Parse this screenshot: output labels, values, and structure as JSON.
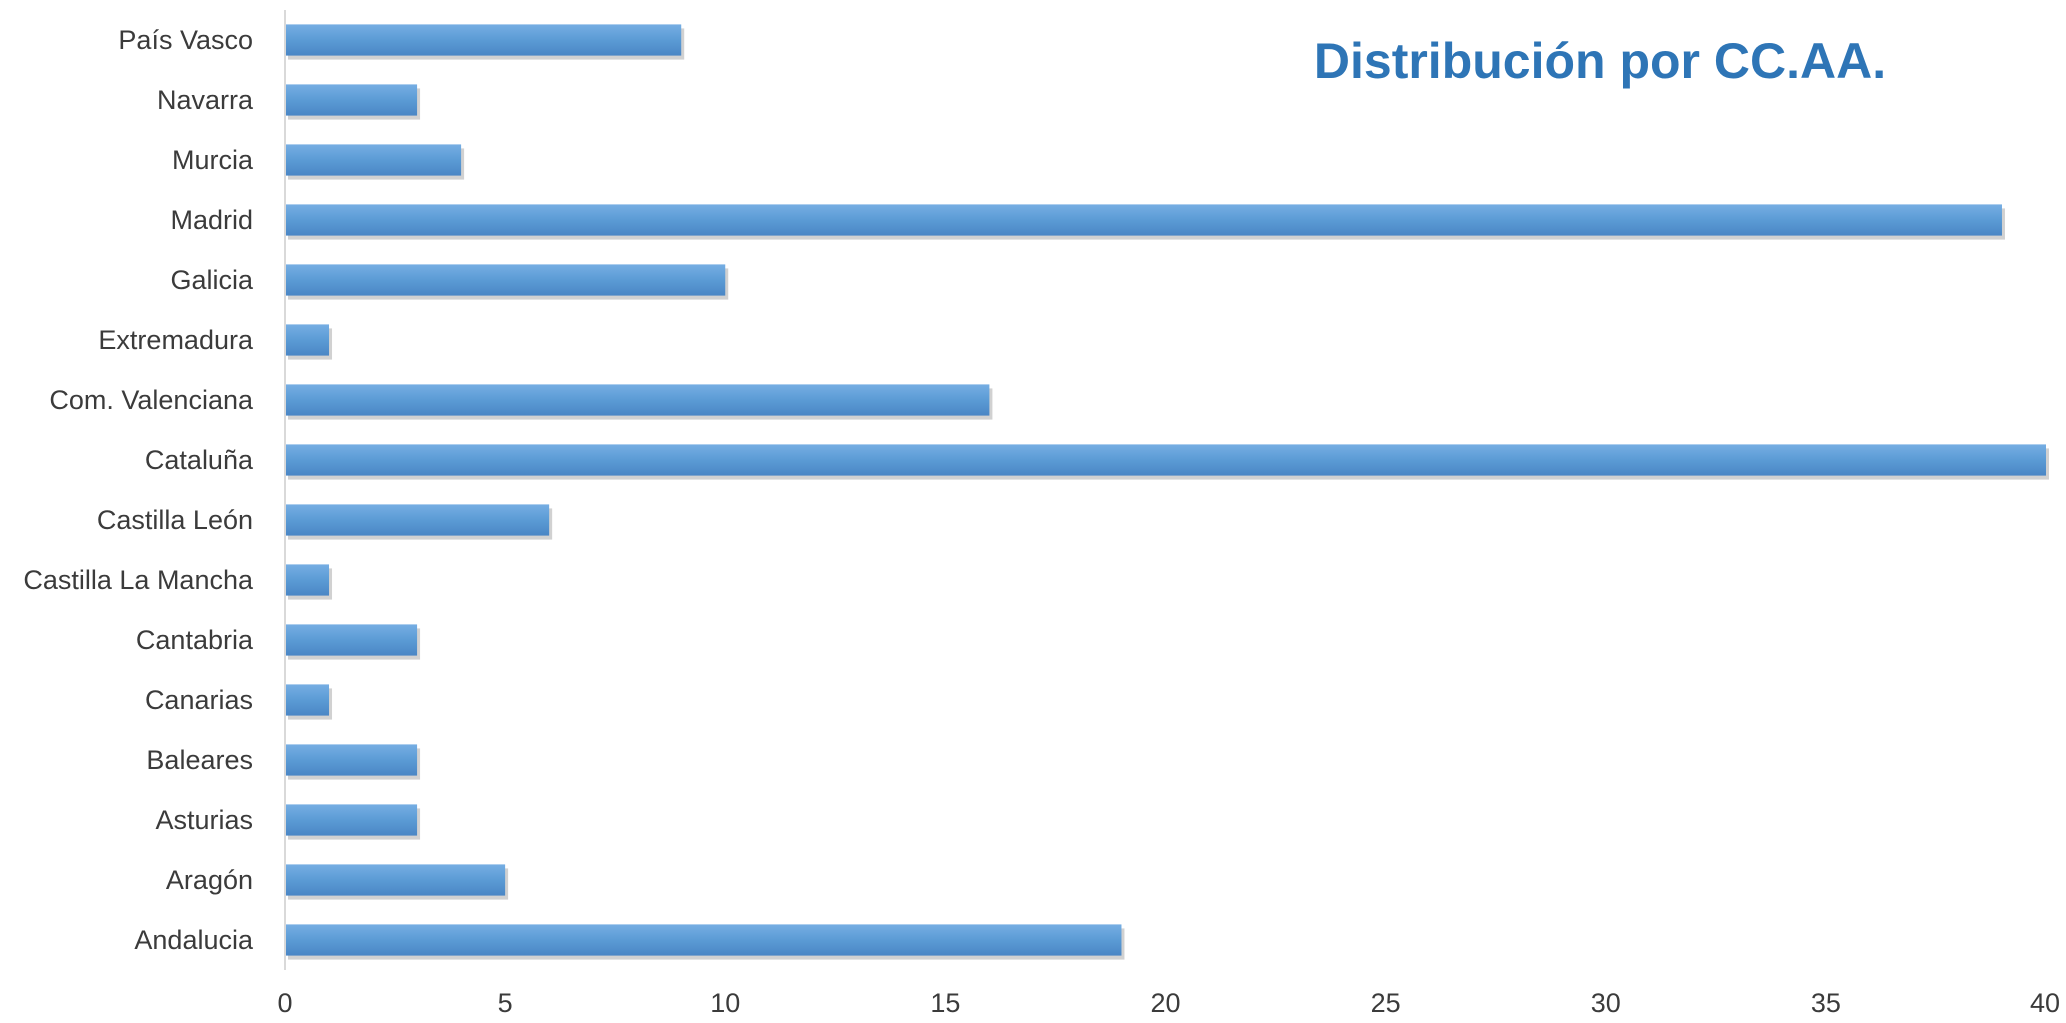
{
  "chart_data": {
    "type": "bar",
    "orientation": "horizontal",
    "title": "Distribución por CC.AA.",
    "xlabel": "",
    "ylabel": "",
    "categories": [
      "Andalucia",
      "Aragón",
      "Asturias",
      "Baleares",
      "Canarias",
      "Cantabria",
      "Castilla La Mancha",
      "Castilla León",
      "Cataluña",
      "Com. Valenciana",
      "Extremadura",
      "Galicia",
      "Madrid",
      "Murcia",
      "Navarra",
      "País Vasco"
    ],
    "values": [
      19,
      5,
      3,
      3,
      1,
      3,
      1,
      6,
      40,
      16,
      1,
      10,
      39,
      4,
      3,
      9
    ],
    "xlim": [
      0,
      40
    ],
    "x_ticks": [
      0,
      5,
      10,
      15,
      20,
      25,
      30,
      35,
      40
    ],
    "grid": false,
    "legend": "none",
    "colors": {
      "bar": "#5b9bd5",
      "bar_light": "#76aee3",
      "bar_dark": "#4a86c5",
      "title": "#2e75b6",
      "axis": "#d9d9d9",
      "text": "#3b3b3b"
    }
  }
}
